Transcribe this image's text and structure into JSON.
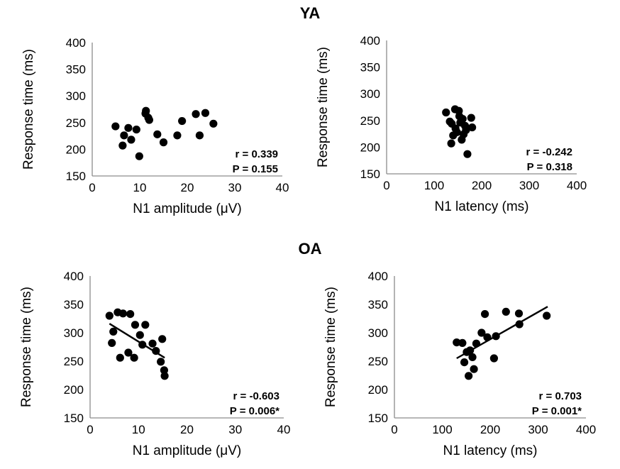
{
  "groups": [
    {
      "title": "YA"
    },
    {
      "title": "OA"
    }
  ],
  "chart_data": [
    {
      "type": "scatter",
      "group": "YA",
      "xlabel": "N1 amplitude (μV)",
      "ylabel": "Response time (ms)",
      "xlim": [
        0,
        40
      ],
      "ylim": [
        150,
        400
      ],
      "xticks": [
        "0",
        "10",
        "20",
        "30",
        "40"
      ],
      "yticks": [
        "150",
        "200",
        "250",
        "300",
        "350",
        "400"
      ],
      "grid": false,
      "stats": [
        "r = 0.339",
        "P = 0.155"
      ],
      "points": [
        [
          4.9,
          243
        ],
        [
          6.4,
          207
        ],
        [
          6.7,
          226
        ],
        [
          7.6,
          240
        ],
        [
          8.2,
          218
        ],
        [
          9.3,
          237
        ],
        [
          9.9,
          187
        ],
        [
          11.2,
          267
        ],
        [
          11.3,
          272
        ],
        [
          11.8,
          259
        ],
        [
          12.0,
          255
        ],
        [
          13.7,
          228
        ],
        [
          15.0,
          213
        ],
        [
          17.9,
          226
        ],
        [
          18.9,
          253
        ],
        [
          21.8,
          266
        ],
        [
          22.6,
          226
        ],
        [
          23.8,
          268
        ],
        [
          25.5,
          248
        ]
      ],
      "trendline": null
    },
    {
      "type": "scatter",
      "group": "YA",
      "xlabel": "N1 latency (ms)",
      "ylabel": "Response time  (ms)",
      "xlim": [
        0,
        400
      ],
      "ylim": [
        150,
        400
      ],
      "xticks": [
        "0",
        "100",
        "200",
        "300",
        "400"
      ],
      "yticks": [
        "150",
        "200",
        "250",
        "300",
        "350",
        "400"
      ],
      "grid": false,
      "stats": [
        "r = -0.242",
        "P = 0.318"
      ],
      "points": [
        [
          125,
          265
        ],
        [
          133,
          248
        ],
        [
          136,
          207
        ],
        [
          137,
          244
        ],
        [
          140,
          222
        ],
        [
          144,
          271
        ],
        [
          145,
          235
        ],
        [
          148,
          228
        ],
        [
          152,
          268
        ],
        [
          153,
          258
        ],
        [
          155,
          246
        ],
        [
          158,
          214
        ],
        [
          160,
          253
        ],
        [
          162,
          224
        ],
        [
          165,
          240
        ],
        [
          167,
          232
        ],
        [
          170,
          187
        ],
        [
          178,
          255
        ],
        [
          180,
          237
        ]
      ],
      "trendline": null
    },
    {
      "type": "scatter",
      "group": "OA",
      "xlabel": "N1 amplitude (μV)",
      "ylabel": "Response time (ms)",
      "xlim": [
        0,
        40
      ],
      "ylim": [
        150,
        400
      ],
      "xticks": [
        "0",
        "10",
        "20",
        "30",
        "40"
      ],
      "yticks": [
        "150",
        "200",
        "250",
        "300",
        "350",
        "400"
      ],
      "grid": false,
      "stats": [
        "r = -0.603",
        "P = 0.006*"
      ],
      "points": [
        [
          4.0,
          330
        ],
        [
          4.5,
          282
        ],
        [
          4.8,
          302
        ],
        [
          5.7,
          336
        ],
        [
          6.2,
          256
        ],
        [
          6.8,
          334
        ],
        [
          7.9,
          265
        ],
        [
          8.3,
          333
        ],
        [
          9.1,
          256
        ],
        [
          9.3,
          314
        ],
        [
          10.3,
          296
        ],
        [
          10.8,
          279
        ],
        [
          11.4,
          314
        ],
        [
          12.9,
          281
        ],
        [
          13.6,
          268
        ],
        [
          14.6,
          249
        ],
        [
          14.9,
          289
        ],
        [
          15.3,
          234
        ],
        [
          15.4,
          224
        ]
      ],
      "trendline": {
        "x": [
          4.0,
          15.4
        ],
        "y": [
          316,
          256
        ]
      }
    },
    {
      "type": "scatter",
      "group": "OA",
      "xlabel": "N1 latency (ms)",
      "ylabel": "Response time  (ms)",
      "xlim": [
        0,
        400
      ],
      "ylim": [
        150,
        400
      ],
      "xticks": [
        "0",
        "100",
        "200",
        "300",
        "400"
      ],
      "yticks": [
        "150",
        "200",
        "250",
        "300",
        "350",
        "400"
      ],
      "grid": false,
      "stats": [
        "r = 0.703",
        "P = 0.001*"
      ],
      "points": [
        [
          130,
          283
        ],
        [
          142,
          282
        ],
        [
          146,
          248
        ],
        [
          151,
          266
        ],
        [
          155,
          224
        ],
        [
          158,
          269
        ],
        [
          163,
          257
        ],
        [
          166,
          236
        ],
        [
          171,
          281
        ],
        [
          182,
          300
        ],
        [
          189,
          333
        ],
        [
          194,
          292
        ],
        [
          208,
          255
        ],
        [
          212,
          294
        ],
        [
          233,
          337
        ],
        [
          260,
          334
        ],
        [
          261,
          315
        ],
        [
          318,
          330
        ]
      ],
      "trendline": {
        "x": [
          130,
          320
        ],
        "y": [
          255,
          346
        ]
      }
    }
  ]
}
